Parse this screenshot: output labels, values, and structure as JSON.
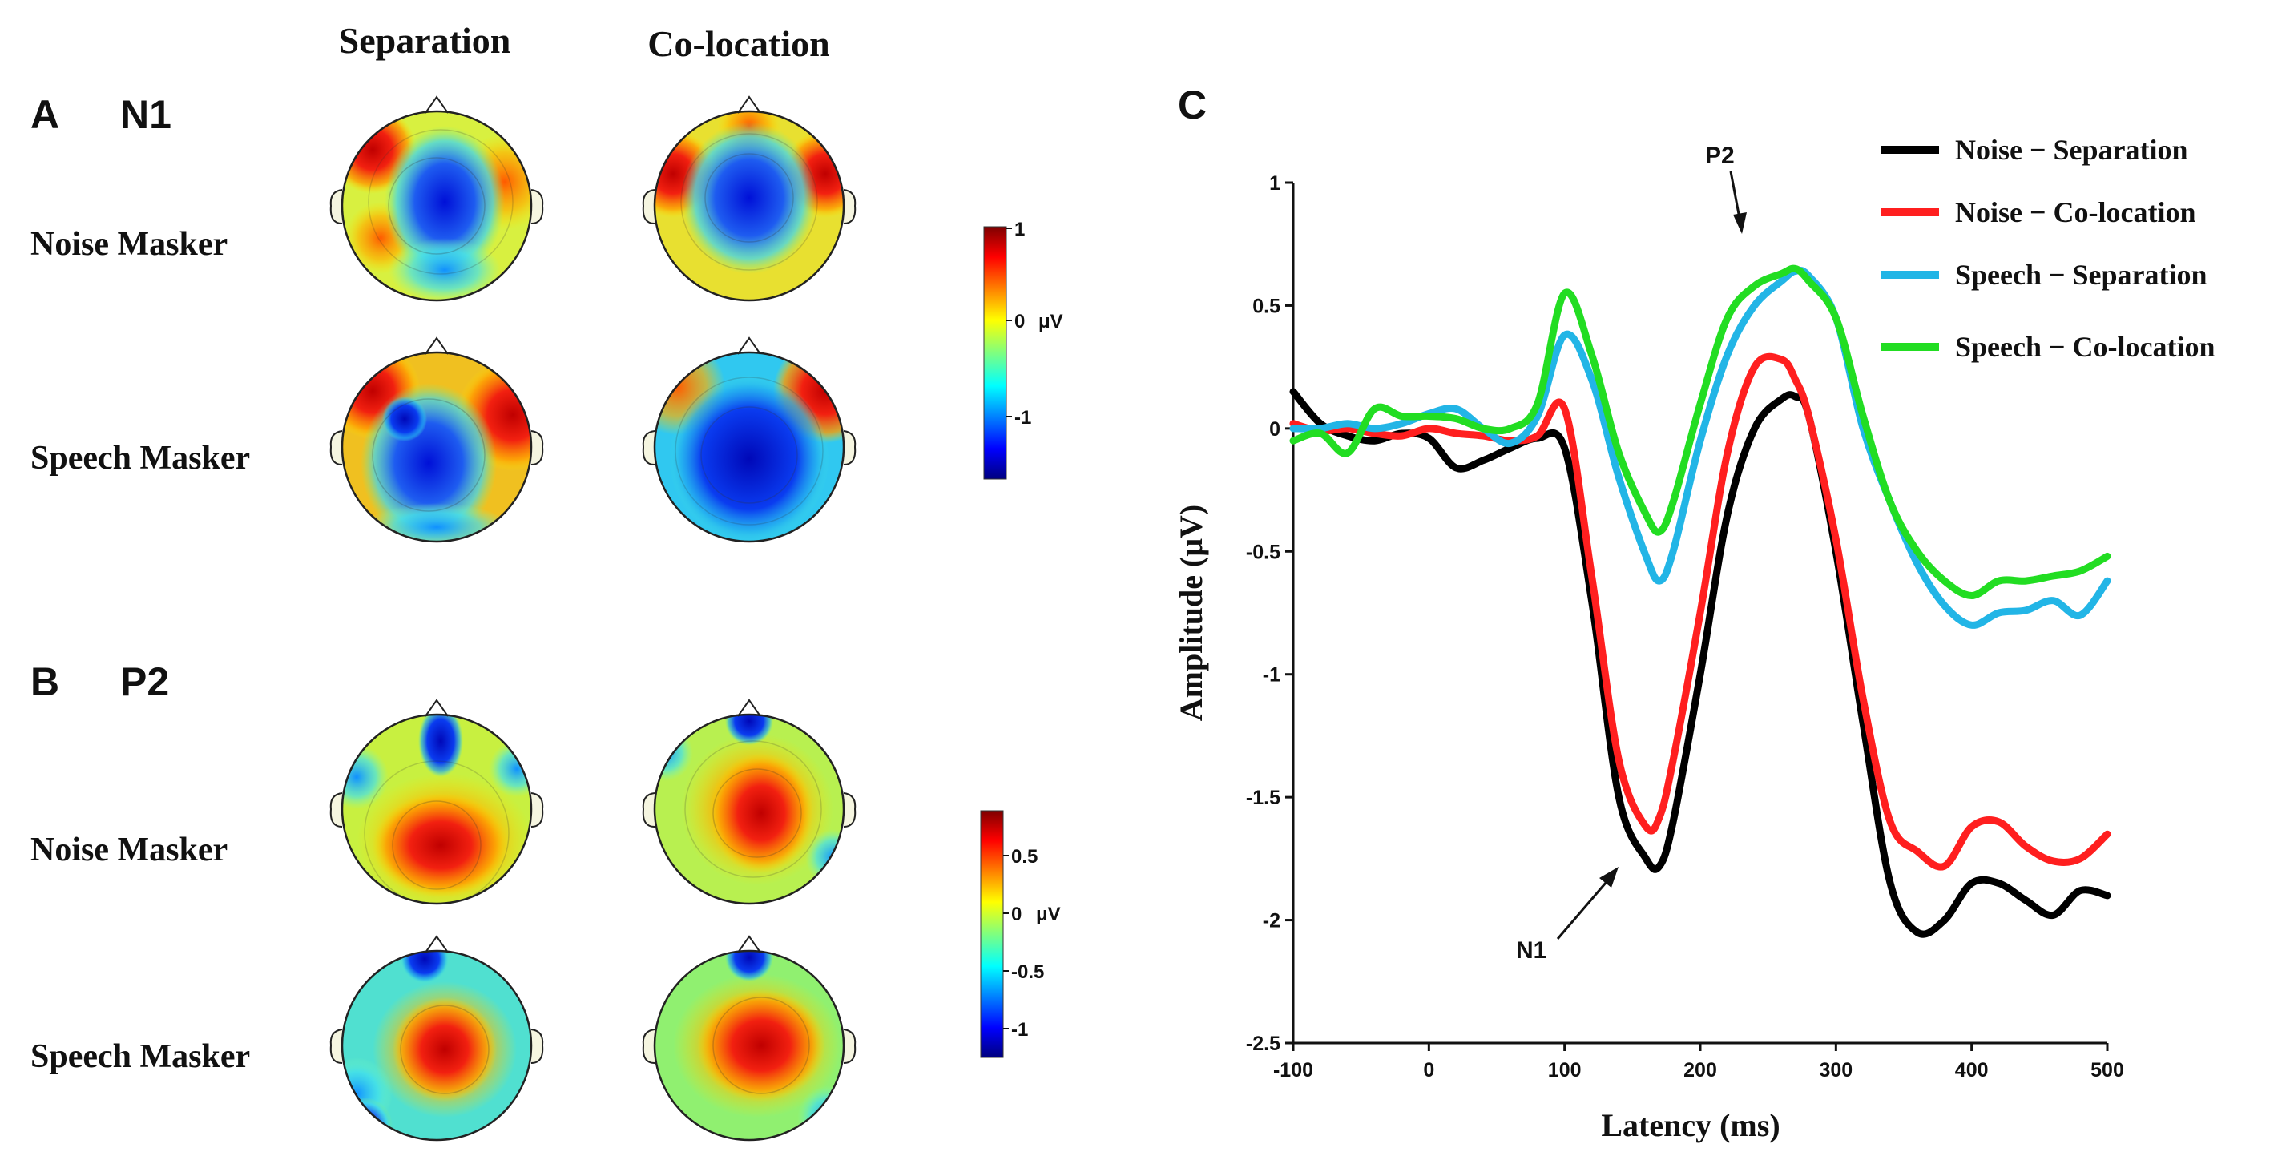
{
  "figure": {
    "panel_a": {
      "letter": "A",
      "component": "N1"
    },
    "panel_b": {
      "letter": "B",
      "component": "P2"
    },
    "panel_c": {
      "letter": "C"
    },
    "column_headers": [
      "Separation",
      "Co-location"
    ],
    "row_labels": [
      "Noise Masker",
      "Speech Masker"
    ]
  },
  "colorbars": {
    "n1": {
      "ticks": [
        "1",
        "0",
        "-1"
      ],
      "unit": "μV"
    },
    "p2": {
      "ticks": [
        "0.5",
        "0",
        "-0.5",
        "-1"
      ],
      "unit": "μV"
    }
  },
  "chart_data": {
    "type": "line",
    "xlabel": "Latency (ms)",
    "ylabel": "Amplitude (μV)",
    "xlim": [
      -100,
      500
    ],
    "ylim": [
      -2.5,
      1
    ],
    "xticks": [
      "-100",
      "0",
      "100",
      "200",
      "300",
      "400",
      "500"
    ],
    "yticks": [
      "1",
      "0.5",
      "0",
      "-0.5",
      "-1",
      "-1.5",
      "-2",
      "-2.5"
    ],
    "annotations": [
      {
        "text": "P2",
        "x": 232,
        "y": 0.95
      },
      {
        "text": "N1",
        "x": 105,
        "y": -2.2
      }
    ],
    "x": [
      -100,
      -80,
      -60,
      -40,
      -20,
      0,
      20,
      40,
      60,
      80,
      100,
      120,
      140,
      160,
      170,
      180,
      200,
      220,
      240,
      260,
      270,
      280,
      300,
      320,
      340,
      360,
      380,
      400,
      420,
      440,
      460,
      480,
      500
    ],
    "series": [
      {
        "name": "Noise − Separation",
        "color": "#000000",
        "values": [
          0.15,
          0.02,
          -0.03,
          -0.05,
          -0.02,
          -0.04,
          -0.16,
          -0.13,
          -0.08,
          -0.04,
          -0.08,
          -0.7,
          -1.5,
          -1.75,
          -1.78,
          -1.6,
          -1.0,
          -0.35,
          0.0,
          0.12,
          0.13,
          0.05,
          -0.5,
          -1.2,
          -1.85,
          -2.05,
          -2.0,
          -1.85,
          -1.85,
          -1.92,
          -1.98,
          -1.88,
          -1.9
        ]
      },
      {
        "name": "Noise − Co-location",
        "color": "#ff1f1f",
        "values": [
          0.02,
          -0.01,
          0.0,
          -0.02,
          -0.03,
          0.0,
          -0.02,
          -0.03,
          -0.05,
          -0.03,
          0.08,
          -0.6,
          -1.35,
          -1.62,
          -1.58,
          -1.35,
          -0.75,
          -0.1,
          0.25,
          0.28,
          0.2,
          0.05,
          -0.45,
          -1.1,
          -1.6,
          -1.72,
          -1.78,
          -1.62,
          -1.6,
          -1.7,
          -1.76,
          -1.75,
          -1.65
        ]
      },
      {
        "name": "Speech − Separation",
        "color": "#22b5e6",
        "values": [
          0.0,
          0.0,
          0.02,
          0.0,
          0.02,
          0.06,
          0.08,
          0.0,
          -0.06,
          0.05,
          0.38,
          0.2,
          -0.2,
          -0.52,
          -0.62,
          -0.5,
          -0.05,
          0.3,
          0.5,
          0.6,
          0.64,
          0.62,
          0.45,
          0.0,
          -0.3,
          -0.55,
          -0.72,
          -0.8,
          -0.75,
          -0.74,
          -0.7,
          -0.76,
          -0.62
        ]
      },
      {
        "name": "Speech − Co-location",
        "color": "#22dd22",
        "values": [
          -0.05,
          -0.02,
          -0.1,
          0.08,
          0.05,
          0.05,
          0.04,
          0.0,
          0.0,
          0.1,
          0.55,
          0.3,
          -0.1,
          -0.35,
          -0.42,
          -0.3,
          0.1,
          0.45,
          0.58,
          0.63,
          0.65,
          0.6,
          0.45,
          0.05,
          -0.3,
          -0.5,
          -0.62,
          -0.68,
          -0.62,
          -0.62,
          -0.6,
          -0.58,
          -0.52
        ]
      }
    ]
  }
}
